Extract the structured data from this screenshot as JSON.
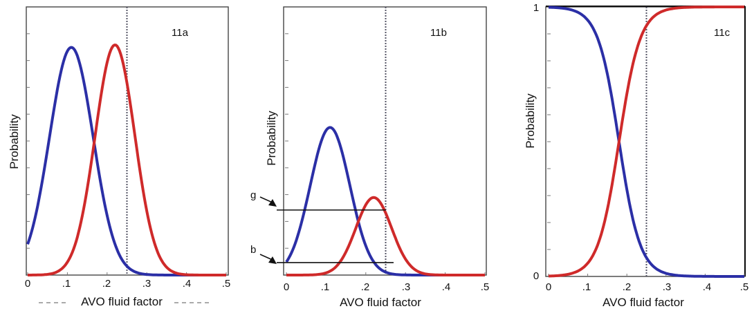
{
  "colors": {
    "series_a": "#2b2fa6",
    "series_b": "#cf2a2a",
    "frame": "#444444",
    "cutoff": "#555566"
  },
  "chart_data": [
    {
      "type": "line",
      "title": "11a",
      "xlabel": "AVO fluid factor",
      "ylabel": "Probability",
      "xlim": [
        0,
        0.5
      ],
      "ylim": [
        0,
        1
      ],
      "x_ticks": [
        "0",
        ".1",
        ".2",
        ".3",
        ".4",
        ".5"
      ],
      "y_ticks": [],
      "cutoff_x": 0.25,
      "series": [
        {
          "color": "blue",
          "shape": "gaussian",
          "mean": 0.11,
          "sd": 0.055,
          "peak": 0.91
        },
        {
          "color": "red",
          "shape": "gaussian",
          "mean": 0.22,
          "sd": 0.05,
          "peak": 0.92
        }
      ]
    },
    {
      "type": "line",
      "title": "11b",
      "xlabel": "AVO fluid factor",
      "ylabel": "Probability",
      "xlim": [
        0,
        0.5
      ],
      "ylim": [
        0,
        1
      ],
      "x_ticks": [
        "0",
        ".1",
        ".2",
        ".3",
        ".4",
        ".5"
      ],
      "y_ticks": [],
      "cutoff_x": 0.25,
      "series": [
        {
          "color": "blue",
          "shape": "gaussian",
          "mean": 0.11,
          "sd": 0.05,
          "peak": 0.59
        },
        {
          "color": "red",
          "shape": "gaussian",
          "mean": 0.22,
          "sd": 0.045,
          "peak": 0.31
        }
      ],
      "annotations": [
        {
          "label": "g",
          "y": 0.26,
          "x_end": 0.25
        },
        {
          "label": "b",
          "y": 0.05,
          "x_end": 0.27
        }
      ]
    },
    {
      "type": "line",
      "title": "11c",
      "xlabel": "AVO fluid factor",
      "ylabel": "Probability",
      "xlim": [
        0,
        0.5
      ],
      "ylim": [
        0,
        1
      ],
      "x_ticks": [
        "0",
        ".1",
        ".2",
        ".3",
        ".4",
        ".5"
      ],
      "y_ticks": [
        "0",
        "1"
      ],
      "cutoff_x": 0.25,
      "series": [
        {
          "color": "blue",
          "shape": "sigmoid-decreasing",
          "midpoint": 0.18,
          "scale": 0.027
        },
        {
          "color": "red",
          "shape": "sigmoid-increasing",
          "midpoint": 0.18,
          "scale": 0.027
        }
      ]
    }
  ]
}
